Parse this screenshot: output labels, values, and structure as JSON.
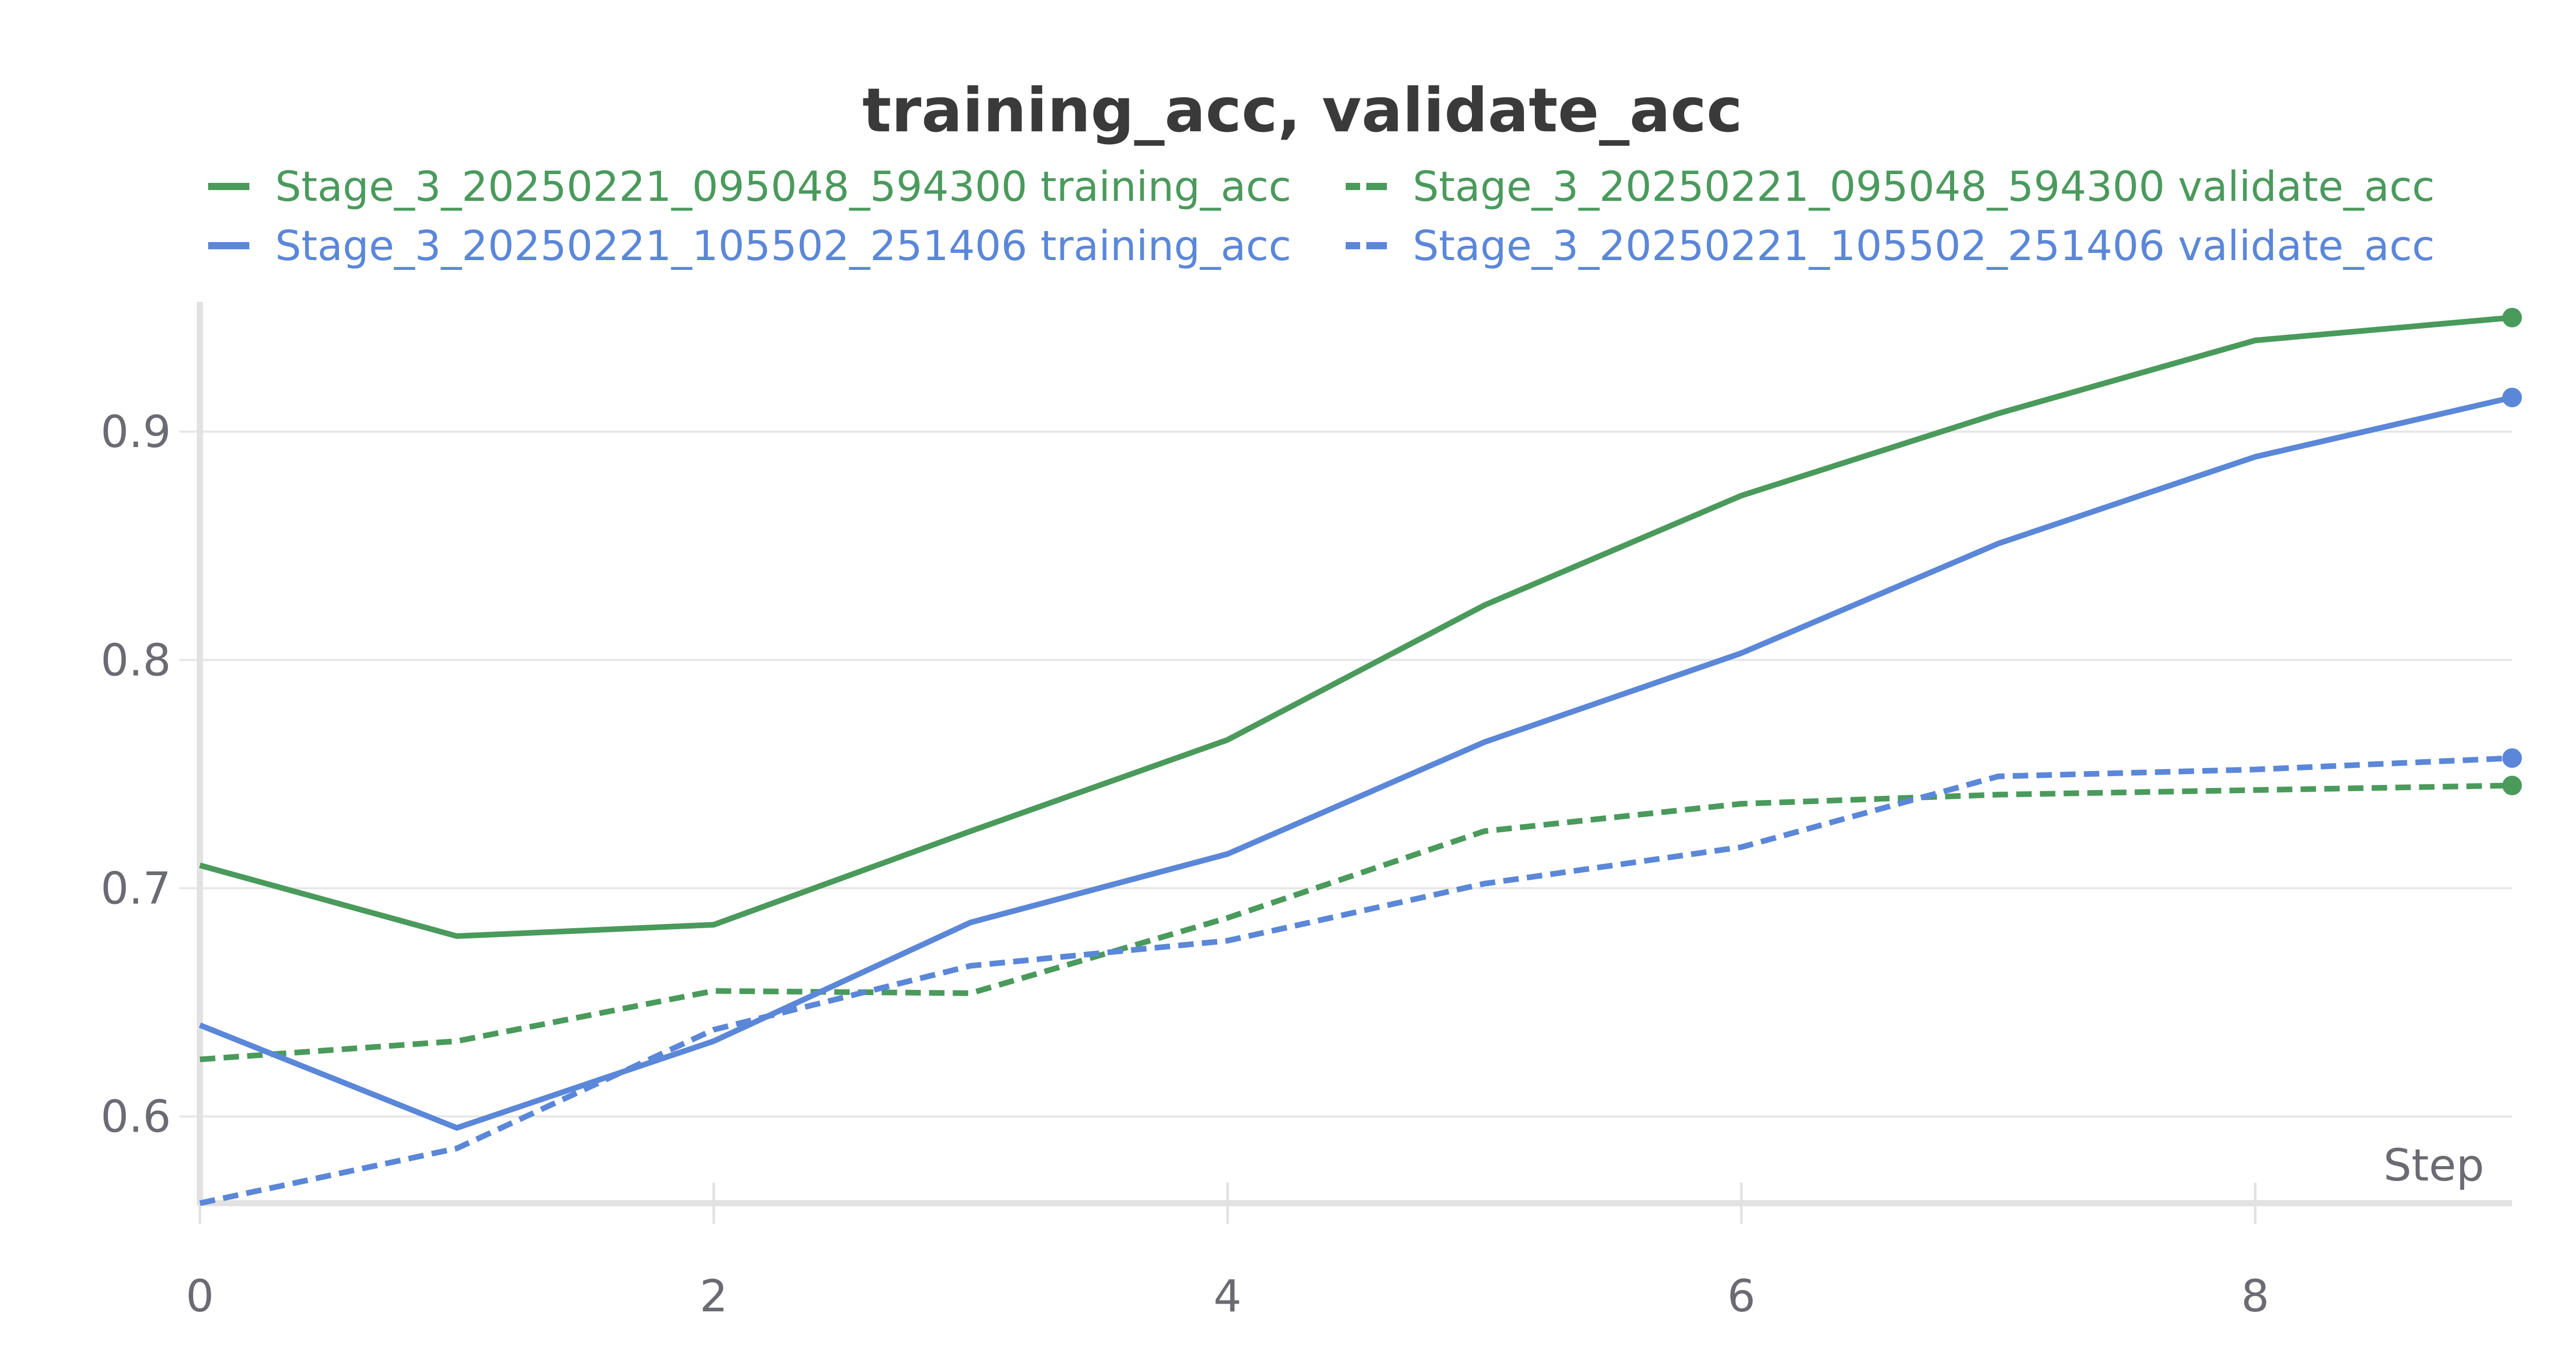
{
  "chart_data": {
    "type": "line",
    "title": "training_acc, validate_acc",
    "xlabel": "Step",
    "ylabel": "",
    "x": [
      0,
      1,
      2,
      3,
      4,
      5,
      6,
      7,
      8,
      9
    ],
    "xlim": [
      0,
      9
    ],
    "ylim": [
      0.562,
      0.956
    ],
    "xticks": [
      0,
      2,
      4,
      6,
      8
    ],
    "yticks": [
      0.6,
      0.7,
      0.8,
      0.9
    ],
    "grid": true,
    "legend_position": "top",
    "series": [
      {
        "name": "Stage_3_20250221_095048_594300 training_acc",
        "color": "#4a9a5c",
        "style": "solid",
        "values": [
          0.71,
          0.679,
          0.684,
          0.725,
          0.765,
          0.824,
          0.872,
          0.908,
          0.94,
          0.95
        ]
      },
      {
        "name": "Stage_3_20250221_095048_594300 validate_acc",
        "color": "#4a9a5c",
        "style": "dashed",
        "values": [
          0.625,
          0.633,
          0.655,
          0.654,
          0.687,
          0.725,
          0.737,
          0.741,
          0.743,
          0.745
        ]
      },
      {
        "name": "Stage_3_20250221_105502_251406 training_acc",
        "color": "#5b87d9",
        "style": "solid",
        "values": [
          0.64,
          0.595,
          0.633,
          0.685,
          0.715,
          0.764,
          0.803,
          0.851,
          0.889,
          0.915
        ]
      },
      {
        "name": "Stage_3_20250221_105502_251406 validate_acc",
        "color": "#5b87d9",
        "style": "dashed",
        "values": [
          0.562,
          0.586,
          0.638,
          0.666,
          0.677,
          0.702,
          0.718,
          0.749,
          0.752,
          0.757
        ]
      }
    ]
  }
}
